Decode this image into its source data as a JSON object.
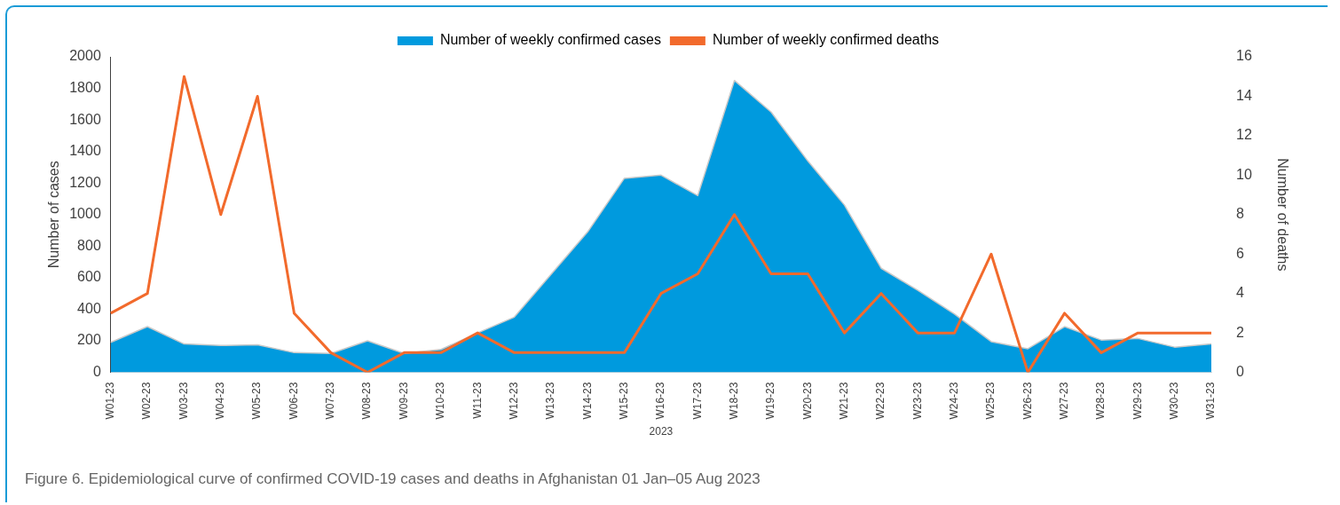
{
  "chart_data": {
    "type": "line",
    "xlabel": "2023",
    "ylabel": "Number of cases",
    "y2label": "Number of deaths",
    "categories": [
      "W01-23",
      "W02-23",
      "W03-23",
      "W04-23",
      "W05-23",
      "W06-23",
      "W07-23",
      "W08-23",
      "W09-23",
      "W10-23",
      "W11-23",
      "W12-23",
      "W13-23",
      "W14-23",
      "W15-23",
      "W16-23",
      "W17-23",
      "W18-23",
      "W19-23",
      "W20-23",
      "W21-23",
      "W22-23",
      "W23-23",
      "W24-23",
      "W25-23",
      "W26-23",
      "W27-23",
      "W28-23",
      "W29-23",
      "W30-23",
      "W31-23"
    ],
    "series": [
      {
        "name": "Number of weekly confirmed cases",
        "type": "area",
        "color": "#009ade",
        "values": [
          190,
          290,
          180,
          170,
          175,
          125,
          120,
          200,
          120,
          145,
          250,
          350,
          620,
          890,
          1230,
          1250,
          1120,
          1850,
          1650,
          1340,
          1060,
          660,
          520,
          370,
          195,
          150,
          290,
          205,
          215,
          160,
          180
        ]
      },
      {
        "name": "Number of weekly confirmed deaths",
        "type": "line",
        "axis": "y2",
        "color": "#f26a2c",
        "values": [
          3,
          4,
          15,
          8,
          14,
          3,
          1,
          0,
          1,
          1,
          2,
          1,
          1,
          1,
          1,
          4,
          5,
          8,
          5,
          5,
          2,
          4,
          2,
          2,
          6,
          0,
          3,
          1,
          2,
          2,
          2
        ]
      }
    ],
    "ylim": [
      0,
      2000
    ],
    "yticks": [
      0,
      200,
      400,
      600,
      800,
      1000,
      1200,
      1400,
      1600,
      1800,
      2000
    ],
    "y2lim": [
      0,
      16
    ],
    "y2ticks": [
      0,
      2,
      4,
      6,
      8,
      10,
      12,
      14,
      16
    ],
    "grid": false,
    "legend": "top",
    "marker": "none",
    "annotations": [
      "Figure 6. Epidemiological curve of confirmed COVID-19 cases and deaths in Afghanistan 01 Jan–05 Aug 2023"
    ]
  }
}
